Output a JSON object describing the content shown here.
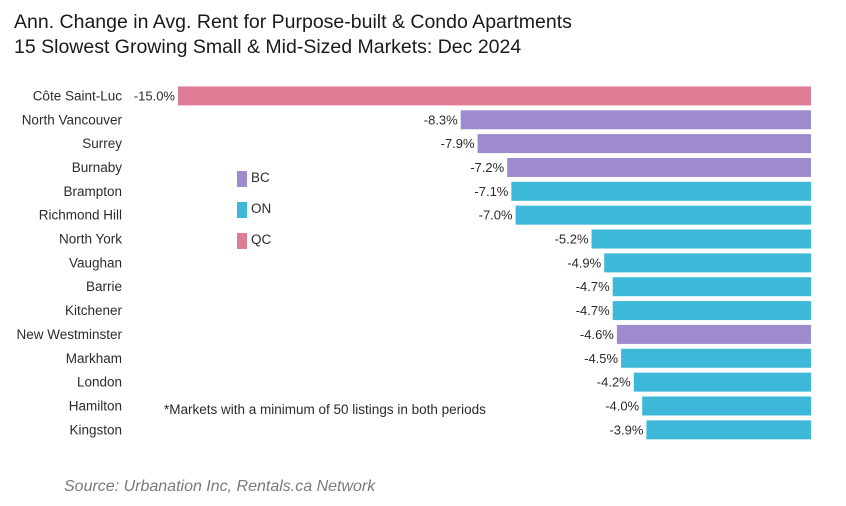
{
  "chart_data": {
    "type": "bar",
    "orientation": "horizontal",
    "title": "Ann. Change in Avg. Rent for Purpose-built & Condo Apartments",
    "subtitle": "15 Slowest Growing Small & Mid-Sized Markets: Dec 2024",
    "categories": [
      "Côte Saint-Luc",
      "North Vancouver",
      "Surrey",
      "Burnaby",
      "Brampton",
      "Richmond Hill",
      "North York",
      "Vaughan",
      "Barrie",
      "Kitchener",
      "New Westminster",
      "Markham",
      "London",
      "Hamilton",
      "Kingston"
    ],
    "values": [
      -15.0,
      -8.3,
      -7.9,
      -7.2,
      -7.1,
      -7.0,
      -5.2,
      -4.9,
      -4.7,
      -4.7,
      -4.6,
      -4.5,
      -4.2,
      -4.0,
      -3.9
    ],
    "value_labels": [
      "-15.0%",
      "-8.3%",
      "-7.9%",
      "-7.2%",
      "-7.1%",
      "-7.0%",
      "-5.2%",
      "-4.9%",
      "-4.7%",
      "-4.7%",
      "-4.6%",
      "-4.5%",
      "-4.2%",
      "-4.0%",
      "-3.9%"
    ],
    "groups": [
      "QC",
      "BC",
      "BC",
      "BC",
      "ON",
      "ON",
      "ON",
      "ON",
      "ON",
      "ON",
      "BC",
      "ON",
      "ON",
      "ON",
      "ON"
    ],
    "legend": [
      {
        "name": "BC",
        "color": "#9e8bcd"
      },
      {
        "name": "ON",
        "color": "#3db8d8"
      },
      {
        "name": "QC",
        "color": "#e07d96"
      }
    ],
    "xlim": [
      -15.0,
      0
    ],
    "grid": false,
    "legend_placement": "center-left",
    "note": "*Markets with a minimum of 50 listings in both periods",
    "source": "Source: Urbanation Inc, Rentals.ca Network"
  }
}
